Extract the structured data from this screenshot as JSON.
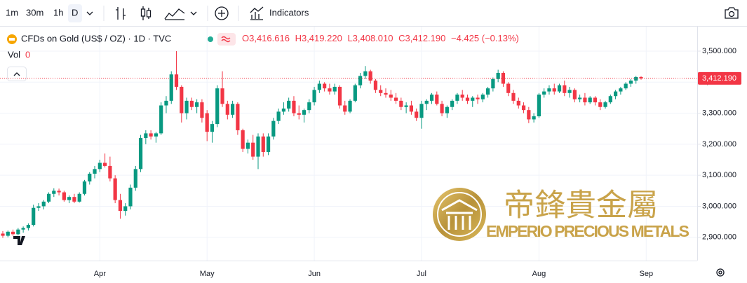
{
  "toolbar": {
    "intervals": [
      "1m",
      "30m",
      "1h",
      "D"
    ],
    "indicators": "Indicators"
  },
  "chart_data": {
    "type": "candlestick",
    "symbol": "CFDs on Gold (US$ / OZ) · 1D · TVC",
    "legend_values": [
      "O3,416.616",
      "H3,419.220",
      "L3,408.010",
      "C3,412.190",
      "−4.425 (−0.13%)"
    ],
    "volume_label": "Vol",
    "volume_value": "0",
    "watermark": {
      "chinese": "帝鋒貴金屬",
      "english": "EMPERIO PRECIOUS METALS"
    },
    "up_color": "#089981",
    "down_color": "#f23645",
    "categories": [
      null,
      null,
      null,
      null,
      null,
      null,
      null,
      null,
      null,
      null,
      null,
      null,
      null,
      null,
      null,
      null,
      null,
      null,
      null,
      "Apr",
      null,
      null,
      null,
      null,
      null,
      null,
      null,
      null,
      null,
      null,
      null,
      null,
      null,
      null,
      null,
      null,
      null,
      null,
      null,
      null,
      "May",
      null,
      null,
      null,
      null,
      null,
      null,
      null,
      null,
      null,
      null,
      null,
      null,
      null,
      null,
      null,
      null,
      null,
      null,
      null,
      null,
      "Jun",
      null,
      null,
      null,
      null,
      null,
      null,
      null,
      null,
      null,
      null,
      null,
      null,
      null,
      null,
      null,
      null,
      null,
      null,
      null,
      null,
      "Jul",
      null,
      null,
      null,
      null,
      null,
      null,
      null,
      null,
      null,
      null,
      null,
      null,
      null,
      null,
      null,
      null,
      null,
      null,
      null,
      null,
      null,
      null,
      "Aug",
      null,
      null,
      null,
      null,
      null,
      null,
      null,
      null,
      null,
      null,
      null,
      null,
      null,
      null,
      null,
      null,
      null,
      null,
      null,
      null,
      "Sep"
    ],
    "open": [
      2912,
      2905,
      2918,
      2910,
      2925,
      2930,
      2940,
      2995,
      3000,
      3015,
      3040,
      3050,
      3045,
      3020,
      3030,
      3015,
      3040,
      3080,
      3105,
      3120,
      3140,
      3130,
      3090,
      3020,
      2985,
      3000,
      3060,
      3120,
      3220,
      3235,
      3225,
      3235,
      3325,
      3340,
      3425,
      3385,
      3300,
      3340,
      3320,
      3335,
      3300,
      3240,
      3265,
      3380,
      3330,
      3295,
      3330,
      3245,
      3185,
      3205,
      3160,
      3225,
      3175,
      3225,
      3275,
      3305,
      3315,
      3340,
      3300,
      3295,
      3310,
      3335,
      3375,
      3395,
      3380,
      3370,
      3385,
      3325,
      3305,
      3340,
      3390,
      3420,
      3435,
      3405,
      3375,
      3365,
      3360,
      3350,
      3340,
      3320,
      3325,
      3305,
      3285,
      3330,
      3340,
      3360,
      3330,
      3300,
      3320,
      3340,
      3360,
      3350,
      3340,
      3350,
      3345,
      3360,
      3380,
      3410,
      3430,
      3395,
      3365,
      3340,
      3325,
      3310,
      3280,
      3290,
      3360,
      3370,
      3380,
      3370,
      3390,
      3365,
      3375,
      3345,
      3350,
      3335,
      3350,
      3335,
      3320,
      3335,
      3355,
      3370,
      3380,
      3395,
      3405,
      3416.616,
      null
    ],
    "high": [
      2920,
      2922,
      2925,
      2930,
      2935,
      2945,
      3005,
      3010,
      3020,
      3045,
      3058,
      3057,
      3050,
      3035,
      3040,
      3045,
      3085,
      3110,
      3130,
      3150,
      3170,
      3160,
      3100,
      3040,
      3010,
      3070,
      3130,
      3230,
      3245,
      3245,
      3240,
      3335,
      3355,
      3435,
      3500,
      3390,
      3350,
      3350,
      3345,
      3345,
      3310,
      3275,
      3390,
      3435,
      3340,
      3340,
      3335,
      3250,
      3215,
      3230,
      3235,
      3235,
      3235,
      3285,
      3315,
      3335,
      3350,
      3355,
      3325,
      3315,
      3345,
      3385,
      3405,
      3400,
      3395,
      3395,
      3390,
      3340,
      3345,
      3395,
      3430,
      3452,
      3440,
      3410,
      3390,
      3380,
      3375,
      3365,
      3350,
      3335,
      3340,
      3315,
      3340,
      3345,
      3365,
      3370,
      3340,
      3325,
      3345,
      3365,
      3375,
      3360,
      3355,
      3360,
      3365,
      3385,
      3415,
      3440,
      3435,
      3400,
      3375,
      3350,
      3335,
      3320,
      3300,
      3365,
      3380,
      3390,
      3395,
      3395,
      3405,
      3385,
      3380,
      3360,
      3365,
      3355,
      3355,
      3345,
      3340,
      3360,
      3375,
      3385,
      3400,
      3410,
      3420,
      3419.22,
      null
    ],
    "low": [
      2898,
      2900,
      2905,
      2906,
      2915,
      2922,
      2935,
      2985,
      2990,
      3010,
      3030,
      3035,
      3015,
      3010,
      3010,
      3012,
      3035,
      3070,
      3090,
      3110,
      3125,
      3080,
      3010,
      2960,
      2970,
      2990,
      3050,
      3110,
      3200,
      3215,
      3205,
      3230,
      3300,
      3330,
      3375,
      3270,
      3280,
      3310,
      3300,
      3270,
      3210,
      3205,
      3255,
      3320,
      3280,
      3285,
      3230,
      3175,
      3170,
      3150,
      3120,
      3160,
      3165,
      3215,
      3265,
      3295,
      3305,
      3290,
      3280,
      3270,
      3300,
      3325,
      3365,
      3370,
      3360,
      3360,
      3315,
      3295,
      3300,
      3335,
      3380,
      3410,
      3395,
      3365,
      3355,
      3350,
      3340,
      3330,
      3310,
      3300,
      3295,
      3275,
      3250,
      3310,
      3330,
      3325,
      3290,
      3285,
      3310,
      3330,
      3340,
      3330,
      3320,
      3330,
      3335,
      3350,
      3370,
      3400,
      3385,
      3355,
      3330,
      3315,
      3300,
      3268,
      3270,
      3285,
      3350,
      3360,
      3360,
      3365,
      3355,
      3350,
      3335,
      3335,
      3325,
      3330,
      3325,
      3310,
      3315,
      3330,
      3345,
      3360,
      3375,
      3385,
      3395,
      3408.01,
      null
    ],
    "close": [
      2905,
      2918,
      2910,
      2925,
      2930,
      2940,
      2995,
      3000,
      3015,
      3040,
      3050,
      3045,
      3020,
      3030,
      3015,
      3040,
      3080,
      3105,
      3120,
      3140,
      3130,
      3090,
      3020,
      2985,
      3000,
      3060,
      3120,
      3220,
      3235,
      3225,
      3235,
      3325,
      3340,
      3425,
      3385,
      3300,
      3340,
      3320,
      3335,
      3285,
      3240,
      3265,
      3380,
      3330,
      3295,
      3330,
      3245,
      3185,
      3205,
      3160,
      3225,
      3175,
      3225,
      3275,
      3305,
      3315,
      3340,
      3300,
      3295,
      3310,
      3335,
      3375,
      3395,
      3380,
      3370,
      3385,
      3325,
      3305,
      3340,
      3390,
      3420,
      3435,
      3405,
      3375,
      3365,
      3360,
      3350,
      3340,
      3320,
      3325,
      3305,
      3285,
      3330,
      3340,
      3360,
      3330,
      3300,
      3320,
      3340,
      3360,
      3350,
      3340,
      3350,
      3345,
      3360,
      3380,
      3410,
      3430,
      3395,
      3365,
      3340,
      3325,
      3310,
      3280,
      3290,
      3360,
      3370,
      3380,
      3370,
      3390,
      3365,
      3375,
      3345,
      3350,
      3335,
      3350,
      3335,
      3320,
      3335,
      3355,
      3370,
      3380,
      3395,
      3405,
      3416.616,
      3412.19,
      null
    ],
    "last_price": {
      "value": 3412.19,
      "label": "3,412.190"
    },
    "ylim": [
      2825,
      3579
    ],
    "yticks": [
      {
        "value": 2900,
        "label": "2,900.000"
      },
      {
        "value": 3000,
        "label": "3,000.000"
      },
      {
        "value": 3100,
        "label": "3,100.000"
      },
      {
        "value": 3200,
        "label": "3,200.000"
      },
      {
        "value": 3300,
        "label": "3,300.000"
      },
      {
        "value": 3400,
        "label": "3,400.000"
      },
      {
        "value": 3500,
        "label": "3,500.000"
      }
    ],
    "grid": true
  }
}
